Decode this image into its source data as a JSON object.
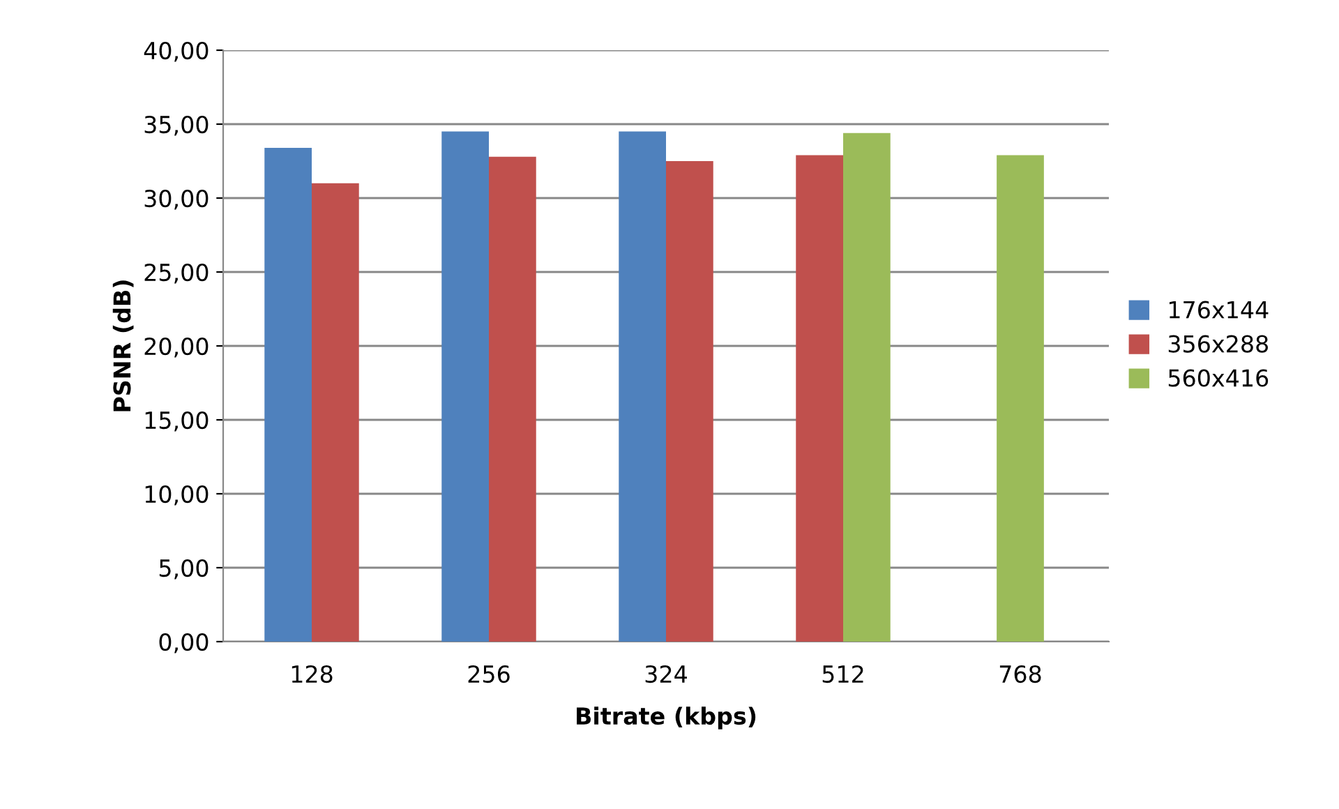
{
  "chart_data": {
    "type": "bar",
    "xlabel": "Bitrate (kbps)",
    "ylabel": "PSNR (dB)",
    "categories": [
      "128",
      "256",
      "324",
      "512",
      "768"
    ],
    "series": [
      {
        "name": "176x144",
        "color": "#4f81bd",
        "values": [
          33.4,
          34.5,
          34.5,
          null,
          null
        ]
      },
      {
        "name": "356x288",
        "color": "#c0504d",
        "values": [
          31.0,
          32.8,
          32.5,
          32.9,
          null
        ]
      },
      {
        "name": "560x416",
        "color": "#9bbb59",
        "values": [
          null,
          null,
          null,
          34.4,
          32.9
        ]
      }
    ],
    "ylim": [
      0,
      40
    ],
    "yticks": [
      {
        "value": 0,
        "label": "0,00"
      },
      {
        "value": 5,
        "label": "5,00"
      },
      {
        "value": 10,
        "label": "10,00"
      },
      {
        "value": 15,
        "label": "15,00"
      },
      {
        "value": 20,
        "label": "20,00"
      },
      {
        "value": 25,
        "label": "25,00"
      },
      {
        "value": 30,
        "label": "30,00"
      },
      {
        "value": 35,
        "label": "35,00"
      },
      {
        "value": 40,
        "label": "40,00"
      }
    ],
    "grid": "y",
    "legend": "right"
  }
}
